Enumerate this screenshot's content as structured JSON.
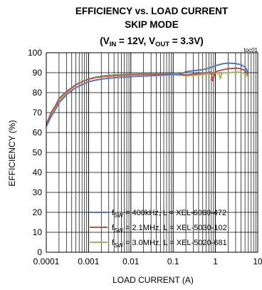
{
  "chart_data": {
    "type": "line",
    "title": {
      "line1": "EFFICIENCY vs. LOAD CURRENT",
      "line2": "SKIP MODE",
      "line3": {
        "open": "(V",
        "sub1": "IN",
        "mid": " = 12V, V",
        "sub2": "OUT",
        "close": " = 3.3V)"
      }
    },
    "figure_id": "toc01",
    "xlabel": "LOAD CURRENT (A)",
    "ylabel": "EFFICIENCY (%)",
    "x_scale": "log",
    "xlim": [
      0.0001,
      10
    ],
    "ylim": [
      0,
      100
    ],
    "x_ticks": [
      {
        "value": 0.0001,
        "label": "0.0001"
      },
      {
        "value": 0.001,
        "label": "0.001"
      },
      {
        "value": 0.01,
        "label": "0.01"
      },
      {
        "value": 0.1,
        "label": "0.1"
      },
      {
        "value": 1,
        "label": "1"
      },
      {
        "value": 10,
        "label": "10"
      }
    ],
    "y_ticks": [
      {
        "value": 0,
        "label": "0"
      },
      {
        "value": 10,
        "label": "10"
      },
      {
        "value": 20,
        "label": "20"
      },
      {
        "value": 30,
        "label": "30"
      },
      {
        "value": 40,
        "label": "40"
      },
      {
        "value": 50,
        "label": "50"
      },
      {
        "value": 60,
        "label": "60"
      },
      {
        "value": 70,
        "label": "70"
      },
      {
        "value": 80,
        "label": "80"
      },
      {
        "value": 90,
        "label": "90"
      },
      {
        "value": 100,
        "label": "100"
      }
    ],
    "grid": true,
    "legend_position": "bottom-right",
    "series": [
      {
        "legend": {
          "pre": "f",
          "sub": "SW",
          "post": " = 400kHz, L = XEL-6060-472"
        },
        "color": "#4a7cc4",
        "x": [
          0.0001,
          0.00013,
          0.00017,
          0.0002,
          0.00025,
          0.0003,
          0.0004,
          0.0005,
          0.0007,
          0.001,
          0.0015,
          0.002,
          0.003,
          0.005,
          0.007,
          0.01,
          0.015,
          0.02,
          0.03,
          0.05,
          0.07,
          0.1,
          0.13,
          0.17,
          0.2,
          0.3,
          0.5,
          0.7,
          1,
          1.5,
          2,
          3,
          4,
          5,
          6
        ],
        "values": [
          63,
          68,
          72,
          75,
          77,
          79,
          81,
          82.5,
          84,
          85.5,
          86.3,
          86.8,
          87.2,
          87.6,
          87.8,
          88,
          88.2,
          88.3,
          88.5,
          88.7,
          88.9,
          89.1,
          89.3,
          89.8,
          90.5,
          91,
          91.5,
          92.3,
          93.5,
          94.5,
          94.8,
          94.6,
          94,
          92.8,
          90
        ]
      },
      {
        "legend": {
          "pre": "f",
          "sub": "SW",
          "post": " = 2.1MHz, L = XEL-5030-102"
        },
        "color": "#c0504d",
        "x": [
          0.0001,
          0.00013,
          0.00017,
          0.0002,
          0.00025,
          0.0003,
          0.0004,
          0.0005,
          0.0007,
          0.001,
          0.0015,
          0.002,
          0.003,
          0.005,
          0.007,
          0.01,
          0.015,
          0.02,
          0.03,
          0.05,
          0.07,
          0.1,
          0.13,
          0.17,
          0.2,
          0.3,
          0.5,
          0.7,
          0.8,
          0.85,
          1,
          1.5,
          2,
          3,
          4,
          5,
          6
        ],
        "values": [
          64,
          70,
          74,
          77,
          79,
          80.5,
          82.5,
          84,
          85.5,
          86.8,
          87.6,
          88,
          88.3,
          88.6,
          88.8,
          89,
          89.1,
          89.2,
          89.2,
          89.3,
          89.3,
          89.3,
          89.2,
          89,
          88.8,
          89.3,
          89.8,
          90.2,
          90.3,
          86,
          90.5,
          91.5,
          92,
          92.3,
          92,
          91,
          89
        ]
      },
      {
        "legend": {
          "pre": "f",
          "sub": "SW",
          "post": " = 3.0MHz, L = XEL-5020-681"
        },
        "color": "#9bbb59",
        "x": [
          0.0001,
          0.00013,
          0.00017,
          0.0002,
          0.00025,
          0.0003,
          0.0004,
          0.0005,
          0.0007,
          0.001,
          0.0015,
          0.002,
          0.003,
          0.005,
          0.007,
          0.01,
          0.015,
          0.02,
          0.03,
          0.05,
          0.07,
          0.1,
          0.13,
          0.17,
          0.2,
          0.3,
          0.5,
          0.7,
          1,
          1.2,
          1.3,
          1.4,
          1.6,
          2,
          3,
          4,
          5,
          6
        ],
        "values": [
          63.5,
          69,
          73,
          76,
          78,
          80,
          82,
          83.8,
          85.5,
          86.8,
          87.8,
          88.3,
          88.7,
          89,
          89.2,
          89.3,
          89.4,
          89.4,
          89.4,
          89.3,
          89.2,
          89,
          88.8,
          88.6,
          88.5,
          88.7,
          89,
          89.3,
          89.7,
          89.8,
          87,
          89.6,
          89.9,
          90,
          90.3,
          90.2,
          89.5,
          88
        ]
      }
    ]
  }
}
